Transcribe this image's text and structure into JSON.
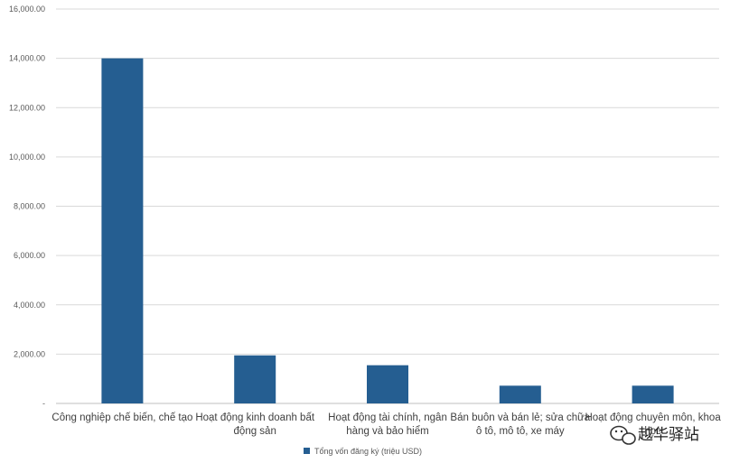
{
  "chart_data": {
    "type": "bar",
    "categories": [
      [
        "Công nghiệp chế biến, chế tạo"
      ],
      [
        "Hoạt động kinh doanh bất",
        "động sản"
      ],
      [
        "Hoạt động tài chính, ngân",
        "hàng và bảo hiểm"
      ],
      [
        "Bán buôn và bán lẻ; sửa chữa",
        "ô tô, mô tô, xe máy"
      ],
      [
        "Hoạt động chuyên môn, khoa",
        "học"
      ]
    ],
    "series": [
      {
        "name": "Tổng vốn đăng ký (triệu USD)",
        "values": [
          14000,
          1950,
          1550,
          720,
          720
        ]
      }
    ],
    "y_ticks": [
      "-",
      "2,000.00",
      "4,000.00",
      "6,000.00",
      "8,000.00",
      "10,000.00",
      "12,000.00",
      "14,000.00",
      "16,000.00"
    ],
    "ylim": [
      0,
      16000
    ],
    "grid": true,
    "legend_position": "bottom",
    "colors": {
      "bar": "#255E91",
      "grid": "#D9D9D9",
      "axis": "#BFBFBF"
    }
  },
  "watermark": {
    "text": "越华驿站",
    "icon": "wechat-icon"
  }
}
